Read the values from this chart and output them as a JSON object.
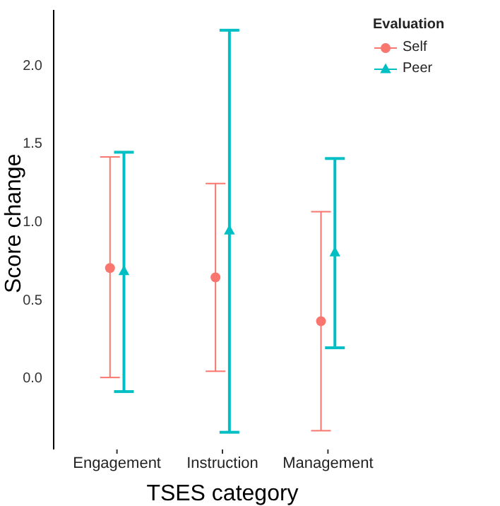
{
  "chart_data": {
    "type": "scatter",
    "xlabel": "TSES category",
    "ylabel": "Score change",
    "legend_title": "Evaluation",
    "categories": [
      "Engagement",
      "Instruction",
      "Management"
    ],
    "series": [
      {
        "name": "Self",
        "color": "#f8766d",
        "marker": "circle",
        "values": [
          0.7,
          0.64,
          0.36
        ],
        "errors": [
          [
            0.0,
            1.41
          ],
          [
            0.04,
            1.24
          ],
          [
            -0.34,
            1.06
          ]
        ]
      },
      {
        "name": "Peer",
        "color": "#00bfc4",
        "marker": "triangle",
        "values": [
          0.68,
          0.94,
          0.8
        ],
        "errors": [
          [
            -0.09,
            1.44
          ],
          [
            -0.35,
            2.22
          ],
          [
            0.19,
            1.4
          ]
        ]
      }
    ],
    "ylim": [
      -0.46,
      2.35
    ],
    "yticks": [
      {
        "value": 0,
        "label": "0.0"
      },
      {
        "value": 0.5,
        "label": "0.5"
      },
      {
        "value": 1,
        "label": "1.0"
      },
      {
        "value": 1.5,
        "label": "1.5"
      },
      {
        "value": 2,
        "label": "2.0"
      }
    ],
    "grid": false,
    "legend": "top right"
  }
}
